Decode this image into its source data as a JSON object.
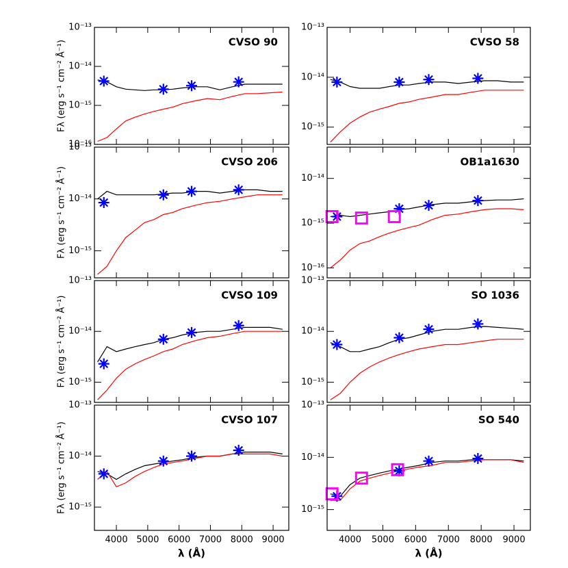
{
  "chart_data": [
    {
      "type": "line",
      "title": "CVSO 90",
      "ylabel": "Fλ (erg s⁻¹ cm⁻² Å⁻¹)",
      "log_y": true,
      "xlim": [
        3300,
        9500
      ],
      "xticks": [
        4000,
        5000,
        6000,
        7000,
        8000,
        9000
      ],
      "ylim": [
        1e-16,
        1e-13
      ],
      "yticks": [
        {
          "value": 1e-16,
          "label": "10⁻¹⁶"
        },
        {
          "value": 1e-15,
          "label": "10⁻¹⁵"
        },
        {
          "value": 1e-14,
          "label": "10⁻¹⁴"
        },
        {
          "value": 1e-13,
          "label": "10⁻¹³"
        }
      ],
      "x": [
        3400,
        3700,
        4000,
        4300,
        4600,
        4900,
        5200,
        5500,
        5800,
        6100,
        6500,
        6900,
        7300,
        7700,
        8100,
        8500,
        8900,
        9300
      ],
      "series": [
        {
          "color": "#000000",
          "values": [
            4.5e-15,
            4e-15,
            3e-15,
            2.6e-15,
            2.5e-15,
            2.4e-15,
            2.5e-15,
            2.5e-15,
            2.6e-15,
            2.8e-15,
            3e-15,
            3e-15,
            2.5e-15,
            3e-15,
            3.5e-15,
            3.5e-15,
            3.5e-15,
            3.5e-15
          ]
        },
        {
          "color": "#ff0000",
          "values": [
            1.2e-16,
            1.5e-16,
            2.5e-16,
            4e-16,
            5e-16,
            6e-16,
            7e-16,
            8e-16,
            9e-16,
            1.1e-15,
            1.3e-15,
            1.5e-15,
            1.4e-15,
            1.7e-15,
            2e-15,
            2e-15,
            2.1e-15,
            2.2e-15
          ]
        }
      ],
      "points": [
        {
          "marker": "asterisk",
          "color": "#0000ff",
          "x": [
            3600,
            5500,
            6400,
            7900
          ],
          "values": [
            4.2e-15,
            2.6e-15,
            3.2e-15,
            4e-15
          ]
        }
      ]
    },
    {
      "type": "line",
      "title": "CVSO 58",
      "log_y": true,
      "xlim": [
        3300,
        9500
      ],
      "xticks": [
        4000,
        5000,
        6000,
        7000,
        8000,
        9000
      ],
      "ylim": [
        4.5e-16,
        1e-13
      ],
      "yticks": [
        {
          "value": 1e-15,
          "label": "10⁻¹⁵"
        },
        {
          "value": 1e-14,
          "label": "10⁻¹⁴"
        },
        {
          "value": 1e-13,
          "label": "10⁻¹³"
        }
      ],
      "x": [
        3400,
        3700,
        4000,
        4300,
        4600,
        4900,
        5200,
        5500,
        5800,
        6100,
        6500,
        6900,
        7300,
        7700,
        8100,
        8500,
        8900,
        9300
      ],
      "series": [
        {
          "color": "#000000",
          "values": [
            9e-15,
            8e-15,
            6.5e-15,
            6e-15,
            6e-15,
            6e-15,
            6.5e-15,
            7e-15,
            7e-15,
            7.5e-15,
            8e-15,
            8e-15,
            7.5e-15,
            8e-15,
            8.5e-15,
            8.5e-15,
            8e-15,
            8e-15
          ]
        },
        {
          "color": "#ff0000",
          "values": [
            5e-16,
            8e-16,
            1.2e-15,
            1.6e-15,
            2e-15,
            2.3e-15,
            2.6e-15,
            3e-15,
            3.2e-15,
            3.6e-15,
            4e-15,
            4.5e-15,
            4.5e-15,
            5e-15,
            5.5e-15,
            5.5e-15,
            5.5e-15,
            5.5e-15
          ]
        }
      ],
      "points": [
        {
          "marker": "asterisk",
          "color": "#0000ff",
          "x": [
            3600,
            5500,
            6400,
            7900
          ],
          "values": [
            8e-15,
            8e-15,
            9e-15,
            9.5e-15
          ]
        }
      ]
    },
    {
      "type": "line",
      "title": "CVSO 206",
      "ylabel": "Fλ (erg s⁻¹ cm⁻² Å⁻¹)",
      "log_y": true,
      "xlim": [
        3300,
        9500
      ],
      "xticks": [
        4000,
        5000,
        6000,
        7000,
        8000,
        9000
      ],
      "ylim": [
        3e-16,
        1e-13
      ],
      "yticks": [
        {
          "value": 1e-15,
          "label": "10⁻¹⁵"
        },
        {
          "value": 1e-14,
          "label": "10⁻¹⁴"
        },
        {
          "value": 1e-13,
          "label": "10⁻¹³"
        }
      ],
      "x": [
        3400,
        3700,
        4000,
        4300,
        4600,
        4900,
        5200,
        5500,
        5800,
        6100,
        6500,
        6900,
        7300,
        7700,
        8100,
        8500,
        8900,
        9300
      ],
      "series": [
        {
          "color": "#000000",
          "values": [
            1e-14,
            1.4e-14,
            1.2e-14,
            1.2e-14,
            1.2e-14,
            1.2e-14,
            1.2e-14,
            1.25e-14,
            1.3e-14,
            1.3e-14,
            1.4e-14,
            1.4e-14,
            1.3e-14,
            1.4e-14,
            1.5e-14,
            1.5e-14,
            1.4e-14,
            1.4e-14
          ]
        },
        {
          "color": "#ff0000",
          "values": [
            3.5e-16,
            5e-16,
            1e-15,
            1.8e-15,
            2.5e-15,
            3.5e-15,
            4e-15,
            5e-15,
            5.5e-15,
            6.5e-15,
            7.5e-15,
            8.5e-15,
            9e-15,
            1e-14,
            1.1e-14,
            1.2e-14,
            1.2e-14,
            1.2e-14
          ]
        }
      ],
      "points": [
        {
          "marker": "asterisk",
          "color": "#0000ff",
          "x": [
            3600,
            5500,
            6400,
            7900
          ],
          "values": [
            8.5e-15,
            1.2e-14,
            1.4e-14,
            1.5e-14
          ]
        }
      ]
    },
    {
      "type": "line",
      "title": "OB1a1630",
      "log_y": true,
      "xlim": [
        3300,
        9500
      ],
      "xticks": [
        4000,
        5000,
        6000,
        7000,
        8000,
        9000
      ],
      "ylim": [
        6e-17,
        5e-14
      ],
      "yticks": [
        {
          "value": 1e-16,
          "label": "10⁻¹⁶"
        },
        {
          "value": 1e-15,
          "label": "10⁻¹⁵"
        },
        {
          "value": 1e-14,
          "label": "10⁻¹⁴"
        }
      ],
      "x": [
        3400,
        3700,
        4000,
        4300,
        4600,
        4900,
        5200,
        5500,
        5800,
        6100,
        6500,
        6900,
        7300,
        7700,
        8100,
        8500,
        8900,
        9300
      ],
      "series": [
        {
          "color": "#000000",
          "values": [
            1.4e-15,
            1.5e-15,
            1.4e-15,
            1.5e-15,
            1.6e-15,
            1.7e-15,
            1.8e-15,
            2e-15,
            2.1e-15,
            2.3e-15,
            2.6e-15,
            2.8e-15,
            2.8e-15,
            3e-15,
            3.2e-15,
            3.3e-15,
            3.3e-15,
            3.5e-15
          ]
        },
        {
          "color": "#ff0000",
          "values": [
            1e-16,
            1.5e-16,
            2.5e-16,
            3.5e-16,
            4e-16,
            5e-16,
            6e-16,
            7e-16,
            8e-16,
            9e-16,
            1.2e-15,
            1.5e-15,
            1.6e-15,
            1.8e-15,
            2e-15,
            2.1e-15,
            2.1e-15,
            2e-15
          ]
        }
      ],
      "points": [
        {
          "marker": "asterisk",
          "color": "#0000ff",
          "x": [
            3600,
            5500,
            6400,
            7900
          ],
          "values": [
            1.4e-15,
            2.1e-15,
            2.5e-15,
            3.2e-15
          ]
        },
        {
          "marker": "square",
          "color": "#ff00ff",
          "x": [
            3450,
            4350,
            5350
          ],
          "values": [
            1.4e-15,
            1.3e-15,
            1.4e-15
          ]
        }
      ]
    },
    {
      "type": "line",
      "title": "CVSO 109",
      "ylabel": "Fλ (erg s⁻¹ cm⁻² Å⁻¹)",
      "log_y": true,
      "xlim": [
        3300,
        9500
      ],
      "xticks": [
        4000,
        5000,
        6000,
        7000,
        8000,
        9000
      ],
      "ylim": [
        4e-16,
        1e-13
      ],
      "yticks": [
        {
          "value": 1e-15,
          "label": "10⁻¹⁵"
        },
        {
          "value": 1e-14,
          "label": "10⁻¹⁴"
        },
        {
          "value": 1e-13,
          "label": "10⁻¹³"
        }
      ],
      "x": [
        3400,
        3700,
        4000,
        4300,
        4600,
        4900,
        5200,
        5500,
        5800,
        6100,
        6500,
        6900,
        7300,
        7700,
        8100,
        8500,
        8900,
        9300
      ],
      "series": [
        {
          "color": "#000000",
          "values": [
            2.5e-15,
            5e-15,
            4e-15,
            4.5e-15,
            5e-15,
            5.5e-15,
            6e-15,
            7e-15,
            7.5e-15,
            8.5e-15,
            9.5e-15,
            1e-14,
            1e-14,
            1.1e-14,
            1.2e-14,
            1.2e-14,
            1.2e-14,
            1.1e-14
          ]
        },
        {
          "color": "#ff0000",
          "values": [
            4.5e-16,
            7e-16,
            1.2e-15,
            1.8e-15,
            2.3e-15,
            2.8e-15,
            3.3e-15,
            4e-15,
            4.5e-15,
            5.5e-15,
            6.5e-15,
            7.5e-15,
            8e-15,
            9e-15,
            1e-14,
            1e-14,
            1e-14,
            1e-14
          ]
        }
      ],
      "points": [
        {
          "marker": "asterisk",
          "color": "#0000ff",
          "x": [
            3600,
            5500,
            6400,
            7900
          ],
          "values": [
            2.3e-15,
            7e-15,
            9.5e-15,
            1.3e-14
          ]
        }
      ]
    },
    {
      "type": "line",
      "title": "SO 1036",
      "log_y": true,
      "xlim": [
        3300,
        9500
      ],
      "xticks": [
        4000,
        5000,
        6000,
        7000,
        8000,
        9000
      ],
      "ylim": [
        4e-16,
        1e-13
      ],
      "yticks": [
        {
          "value": 1e-15,
          "label": "10⁻¹⁵"
        },
        {
          "value": 1e-14,
          "label": "10⁻¹⁴"
        },
        {
          "value": 1e-13,
          "label": "10⁻¹³"
        }
      ],
      "x": [
        3400,
        3700,
        4000,
        4300,
        4600,
        4900,
        5200,
        5500,
        5800,
        6100,
        6500,
        6900,
        7300,
        7700,
        8100,
        8500,
        8900,
        9300
      ],
      "series": [
        {
          "color": "#000000",
          "values": [
            6e-15,
            5e-15,
            4e-15,
            4e-15,
            4.5e-15,
            5e-15,
            6e-15,
            7e-15,
            7.5e-15,
            8.5e-15,
            1e-14,
            1.1e-14,
            1.1e-14,
            1.2e-14,
            1.25e-14,
            1.2e-14,
            1.15e-14,
            1.1e-14
          ]
        },
        {
          "color": "#ff0000",
          "values": [
            4.5e-16,
            6e-16,
            1e-15,
            1.5e-15,
            2e-15,
            2.5e-15,
            3e-15,
            3.5e-15,
            4e-15,
            4.5e-15,
            5e-15,
            5.5e-15,
            5.5e-15,
            6e-15,
            6.5e-15,
            7e-15,
            7e-15,
            7e-15
          ]
        }
      ],
      "points": [
        {
          "marker": "asterisk",
          "color": "#0000ff",
          "x": [
            3600,
            5500,
            6400,
            7900
          ],
          "values": [
            5.5e-15,
            7.5e-15,
            1.1e-14,
            1.4e-14
          ]
        }
      ]
    },
    {
      "type": "line",
      "title": "CVSO 107",
      "ylabel": "Fλ (erg s⁻¹ cm⁻² Å⁻¹)",
      "xlabel": "λ (Å)",
      "log_y": true,
      "xlim": [
        3300,
        9500
      ],
      "xticks": [
        4000,
        5000,
        6000,
        7000,
        8000,
        9000
      ],
      "ylim": [
        3.5e-16,
        1e-13
      ],
      "yticks": [
        {
          "value": 1e-15,
          "label": "10⁻¹⁵"
        },
        {
          "value": 1e-14,
          "label": "10⁻¹⁴"
        },
        {
          "value": 1e-13,
          "label": "10⁻¹³"
        }
      ],
      "x": [
        3400,
        3700,
        4000,
        4300,
        4600,
        4900,
        5200,
        5500,
        5800,
        6100,
        6500,
        6900,
        7300,
        7700,
        8100,
        8500,
        8900,
        9300
      ],
      "series": [
        {
          "color": "#000000",
          "values": [
            5e-15,
            4.5e-15,
            3.5e-15,
            4.5e-15,
            5.5e-15,
            6.5e-15,
            7e-15,
            7.5e-15,
            8e-15,
            8.5e-15,
            9.5e-15,
            1e-14,
            1e-14,
            1.1e-14,
            1.2e-14,
            1.2e-14,
            1.2e-14,
            1.1e-14
          ]
        },
        {
          "color": "#ff0000",
          "values": [
            3.5e-15,
            5e-15,
            2.5e-15,
            3e-15,
            4e-15,
            5e-15,
            6e-15,
            7e-15,
            7.5e-15,
            8e-15,
            9e-15,
            1e-14,
            1e-14,
            1.1e-14,
            1.1e-14,
            1.1e-14,
            1.1e-14,
            1e-14
          ]
        }
      ],
      "points": [
        {
          "marker": "asterisk",
          "color": "#0000ff",
          "x": [
            3600,
            5500,
            6400,
            7900
          ],
          "values": [
            4.5e-15,
            8e-15,
            1e-14,
            1.3e-14
          ]
        }
      ]
    },
    {
      "type": "line",
      "title": "SO 540",
      "xlabel": "λ (Å)",
      "log_y": true,
      "xlim": [
        3300,
        9500
      ],
      "xticks": [
        4000,
        5000,
        6000,
        7000,
        8000,
        9000
      ],
      "ylim": [
        4e-16,
        1e-13
      ],
      "yticks": [
        {
          "value": 1e-15,
          "label": "10⁻¹⁵"
        },
        {
          "value": 1e-14,
          "label": "10⁻¹⁴"
        },
        {
          "value": 1e-13,
          "label": "10⁻¹³"
        }
      ],
      "x": [
        3400,
        3700,
        4000,
        4300,
        4600,
        4900,
        5200,
        5500,
        5800,
        6100,
        6500,
        6900,
        7300,
        7700,
        8100,
        8500,
        8900,
        9300
      ],
      "series": [
        {
          "color": "#000000",
          "values": [
            2e-15,
            1.8e-15,
            3e-15,
            4e-15,
            4.5e-15,
            5e-15,
            5.5e-15,
            6e-15,
            6.5e-15,
            7e-15,
            8e-15,
            8.5e-15,
            8.5e-15,
            9e-15,
            9e-15,
            9e-15,
            9e-15,
            8.5e-15
          ]
        },
        {
          "color": "#ff0000",
          "values": [
            1.5e-15,
            1.5e-15,
            2.5e-15,
            3.5e-15,
            4e-15,
            4.5e-15,
            5e-15,
            5.5e-15,
            6e-15,
            6.5e-15,
            7e-15,
            8e-15,
            8e-15,
            8.5e-15,
            9e-15,
            9e-15,
            9e-15,
            8e-15
          ]
        }
      ],
      "points": [
        {
          "marker": "asterisk",
          "color": "#0000ff",
          "x": [
            3600,
            5500,
            6400,
            7900
          ],
          "values": [
            1.8e-15,
            5.5e-15,
            8.5e-15,
            9.5e-15
          ]
        },
        {
          "marker": "square",
          "color": "#ff00ff",
          "x": [
            3450,
            4350,
            5450
          ],
          "values": [
            2e-15,
            4e-15,
            5.8e-15
          ]
        }
      ]
    }
  ]
}
